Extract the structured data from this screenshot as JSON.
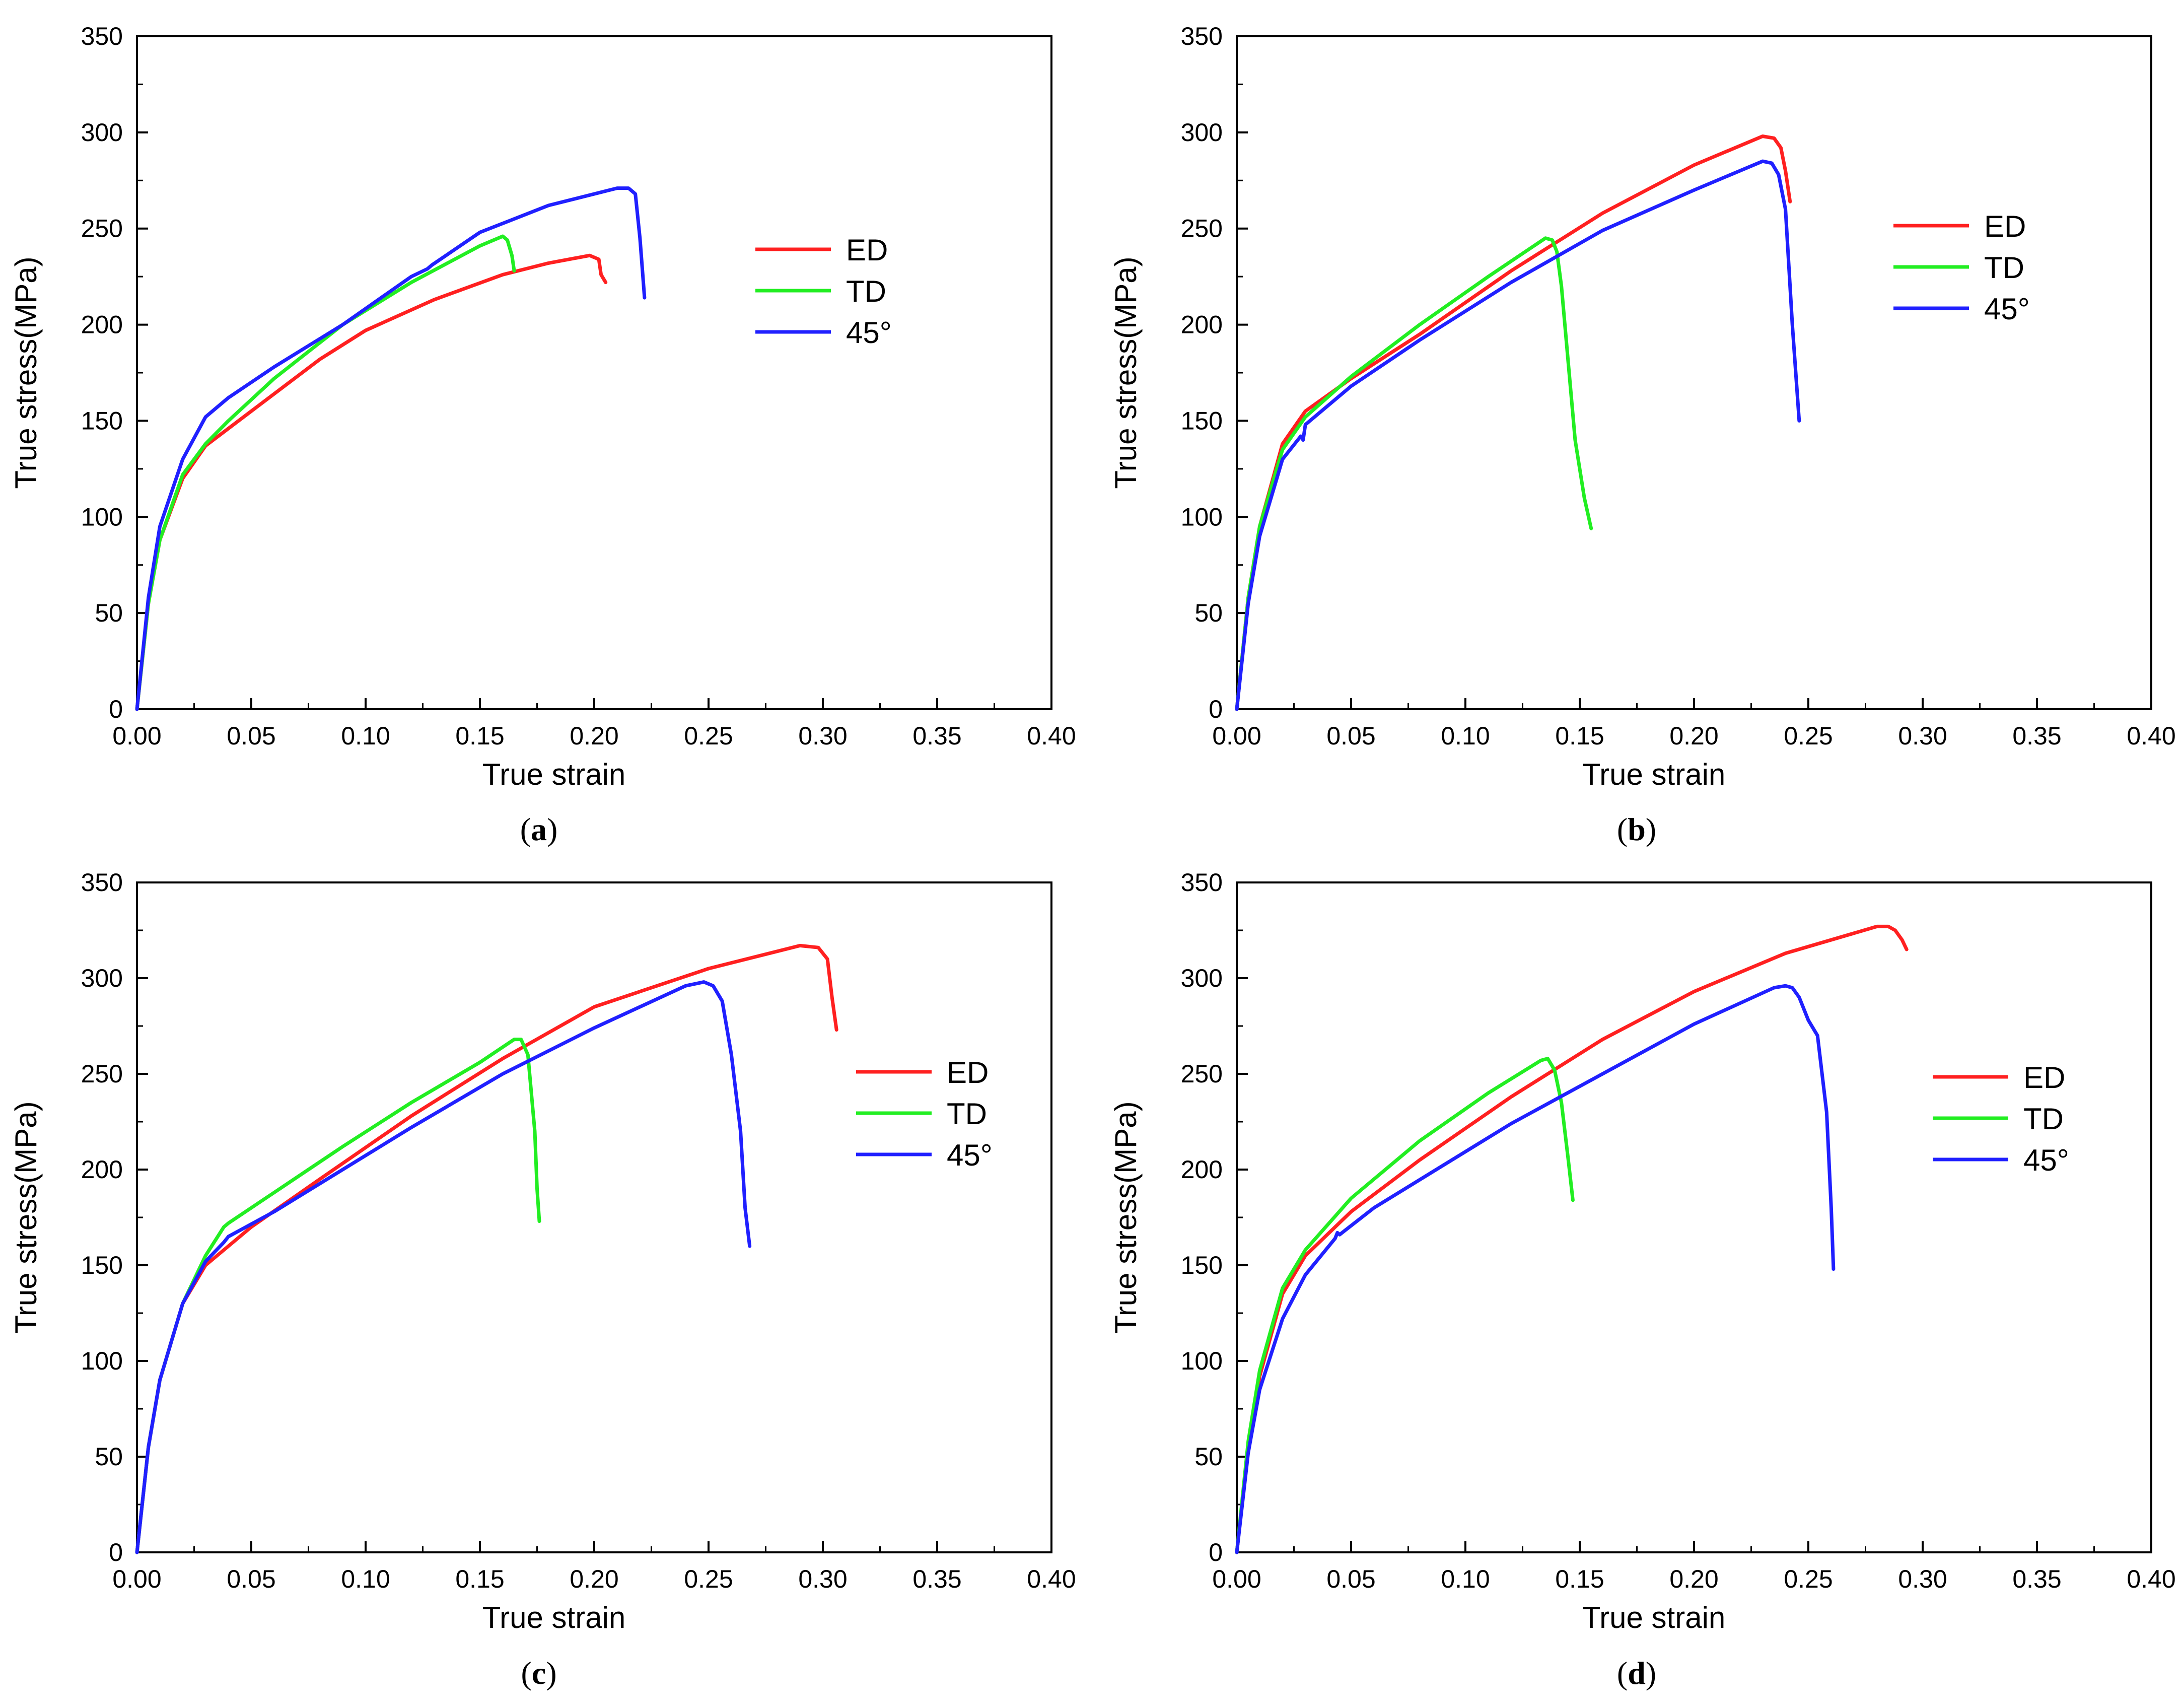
{
  "figure": {
    "panels": [
      {
        "label": "a"
      },
      {
        "label": "b"
      },
      {
        "label": "c"
      },
      {
        "label": "d"
      }
    ]
  },
  "chart_data": [
    {
      "panel": "a",
      "type": "line",
      "xlabel": "True strain",
      "ylabel": "True stress(MPa)",
      "xlim": [
        0,
        0.4
      ],
      "ylim": [
        0,
        350
      ],
      "xticks": [
        "0.00",
        "0.05",
        "0.10",
        "0.15",
        "0.20",
        "0.25",
        "0.30",
        "0.35",
        "0.40"
      ],
      "yticks": [
        "0",
        "50",
        "100",
        "150",
        "200",
        "250",
        "300",
        "350"
      ],
      "legend": [
        "ED",
        "TD",
        "45°"
      ],
      "legend_position": "right-middle",
      "series": [
        {
          "name": "ED",
          "color": "#ff2020",
          "x": [
            0,
            0.005,
            0.01,
            0.02,
            0.03,
            0.05,
            0.08,
            0.1,
            0.13,
            0.16,
            0.18,
            0.198,
            0.202,
            0.203,
            0.205
          ],
          "y": [
            0,
            55,
            88,
            120,
            137,
            155,
            182,
            197,
            213,
            226,
            232,
            236,
            234,
            226,
            222
          ]
        },
        {
          "name": "TD",
          "color": "#22ee22",
          "x": [
            0,
            0.005,
            0.01,
            0.02,
            0.03,
            0.04,
            0.06,
            0.09,
            0.12,
            0.15,
            0.16,
            0.162,
            0.164,
            0.165
          ],
          "y": [
            0,
            55,
            88,
            122,
            138,
            150,
            172,
            200,
            222,
            241,
            246,
            244,
            236,
            228
          ]
        },
        {
          "name": "45°",
          "color": "#2020ff",
          "x": [
            0,
            0.005,
            0.01,
            0.02,
            0.03,
            0.04,
            0.06,
            0.09,
            0.12,
            0.127,
            0.129,
            0.15,
            0.18,
            0.21,
            0.215,
            0.218,
            0.22,
            0.222
          ],
          "y": [
            0,
            58,
            95,
            130,
            152,
            162,
            178,
            200,
            225,
            229,
            231,
            248,
            262,
            271,
            271,
            268,
            245,
            214
          ]
        }
      ]
    },
    {
      "panel": "b",
      "type": "line",
      "xlabel": "True strain",
      "ylabel": "True stress(MPa)",
      "xlim": [
        0,
        0.4
      ],
      "ylim": [
        0,
        350
      ],
      "xticks": [
        "0.00",
        "0.05",
        "0.10",
        "0.15",
        "0.20",
        "0.25",
        "0.30",
        "0.35",
        "0.40"
      ],
      "yticks": [
        "0",
        "50",
        "100",
        "150",
        "200",
        "250",
        "300",
        "350"
      ],
      "legend": [
        "ED",
        "TD",
        "45°"
      ],
      "legend_position": "right-top",
      "series": [
        {
          "name": "ED",
          "color": "#ff2020",
          "x": [
            0,
            0.005,
            0.01,
            0.02,
            0.03,
            0.05,
            0.08,
            0.12,
            0.16,
            0.2,
            0.23,
            0.235,
            0.238,
            0.24,
            0.242
          ],
          "y": [
            0,
            58,
            95,
            138,
            155,
            172,
            195,
            228,
            258,
            283,
            298,
            297,
            292,
            280,
            264
          ]
        },
        {
          "name": "TD",
          "color": "#22ee22",
          "x": [
            0,
            0.005,
            0.01,
            0.02,
            0.03,
            0.05,
            0.08,
            0.11,
            0.135,
            0.138,
            0.14,
            0.142,
            0.145,
            0.148,
            0.152,
            0.155
          ],
          "y": [
            0,
            58,
            95,
            135,
            152,
            173,
            200,
            225,
            245,
            244,
            238,
            220,
            180,
            140,
            110,
            94
          ]
        },
        {
          "name": "45°",
          "color": "#2020ff",
          "x": [
            0,
            0.005,
            0.01,
            0.02,
            0.028,
            0.029,
            0.03,
            0.05,
            0.08,
            0.12,
            0.16,
            0.2,
            0.23,
            0.234,
            0.237,
            0.24,
            0.243,
            0.246
          ],
          "y": [
            0,
            55,
            90,
            130,
            142,
            140,
            148,
            168,
            192,
            222,
            249,
            270,
            285,
            284,
            278,
            260,
            200,
            150
          ]
        }
      ]
    },
    {
      "panel": "c",
      "type": "line",
      "xlabel": "True strain",
      "ylabel": "True stress(MPa)",
      "xlim": [
        0,
        0.4
      ],
      "ylim": [
        0,
        350
      ],
      "xticks": [
        "0.00",
        "0.05",
        "0.10",
        "0.15",
        "0.20",
        "0.25",
        "0.30",
        "0.35",
        "0.40"
      ],
      "yticks": [
        "0",
        "50",
        "100",
        "150",
        "200",
        "250",
        "300",
        "350"
      ],
      "legend": [
        "ED",
        "TD",
        "45°"
      ],
      "legend_position": "right-middle",
      "series": [
        {
          "name": "ED",
          "color": "#ff2020",
          "x": [
            0,
            0.005,
            0.01,
            0.02,
            0.028,
            0.03,
            0.05,
            0.08,
            0.12,
            0.16,
            0.2,
            0.25,
            0.29,
            0.298,
            0.302,
            0.304,
            0.306
          ],
          "y": [
            0,
            55,
            90,
            130,
            146,
            150,
            170,
            195,
            228,
            258,
            285,
            305,
            317,
            316,
            310,
            290,
            273
          ]
        },
        {
          "name": "TD",
          "color": "#22ee22",
          "x": [
            0,
            0.005,
            0.01,
            0.02,
            0.03,
            0.038,
            0.04,
            0.06,
            0.09,
            0.12,
            0.15,
            0.165,
            0.168,
            0.171,
            0.174,
            0.175,
            0.176
          ],
          "y": [
            0,
            55,
            90,
            130,
            155,
            170,
            172,
            188,
            212,
            235,
            256,
            268,
            268,
            260,
            220,
            190,
            173
          ]
        },
        {
          "name": "45°",
          "color": "#2020ff",
          "x": [
            0,
            0.005,
            0.01,
            0.02,
            0.03,
            0.038,
            0.04,
            0.06,
            0.09,
            0.12,
            0.16,
            0.2,
            0.24,
            0.248,
            0.252,
            0.256,
            0.26,
            0.264,
            0.266,
            0.268
          ],
          "y": [
            0,
            55,
            90,
            130,
            152,
            162,
            165,
            178,
            200,
            222,
            250,
            274,
            296,
            298,
            296,
            288,
            260,
            220,
            180,
            160
          ]
        }
      ]
    },
    {
      "panel": "d",
      "type": "line",
      "xlabel": "True strain",
      "ylabel": "True stress(MPa)",
      "xlim": [
        0,
        0.4
      ],
      "ylim": [
        0,
        350
      ],
      "xticks": [
        "0.00",
        "0.05",
        "0.10",
        "0.15",
        "0.20",
        "0.25",
        "0.30",
        "0.35",
        "0.40"
      ],
      "yticks": [
        "0",
        "50",
        "100",
        "150",
        "200",
        "250",
        "300",
        "350"
      ],
      "legend": [
        "ED",
        "TD",
        "45°"
      ],
      "legend_position": "right-middle",
      "series": [
        {
          "name": "ED",
          "color": "#ff2020",
          "x": [
            0,
            0.005,
            0.01,
            0.02,
            0.03,
            0.05,
            0.08,
            0.12,
            0.16,
            0.2,
            0.24,
            0.28,
            0.285,
            0.288,
            0.291,
            0.293
          ],
          "y": [
            0,
            55,
            92,
            135,
            155,
            178,
            205,
            238,
            268,
            293,
            313,
            327,
            327,
            325,
            320,
            315
          ]
        },
        {
          "name": "TD",
          "color": "#22ee22",
          "x": [
            0,
            0.005,
            0.01,
            0.02,
            0.03,
            0.05,
            0.08,
            0.11,
            0.133,
            0.136,
            0.139,
            0.142,
            0.145,
            0.147
          ],
          "y": [
            0,
            58,
            95,
            138,
            158,
            185,
            215,
            240,
            257,
            258,
            252,
            235,
            205,
            184
          ]
        },
        {
          "name": "45°",
          "color": "#2020ff",
          "x": [
            0,
            0.005,
            0.01,
            0.02,
            0.03,
            0.043,
            0.044,
            0.045,
            0.06,
            0.09,
            0.12,
            0.16,
            0.2,
            0.235,
            0.24,
            0.243,
            0.246,
            0.25,
            0.254,
            0.258,
            0.26,
            0.261
          ],
          "y": [
            0,
            52,
            85,
            122,
            145,
            164,
            167,
            166,
            180,
            202,
            224,
            250,
            276,
            295,
            296,
            295,
            290,
            278,
            270,
            230,
            180,
            148
          ]
        }
      ]
    }
  ]
}
